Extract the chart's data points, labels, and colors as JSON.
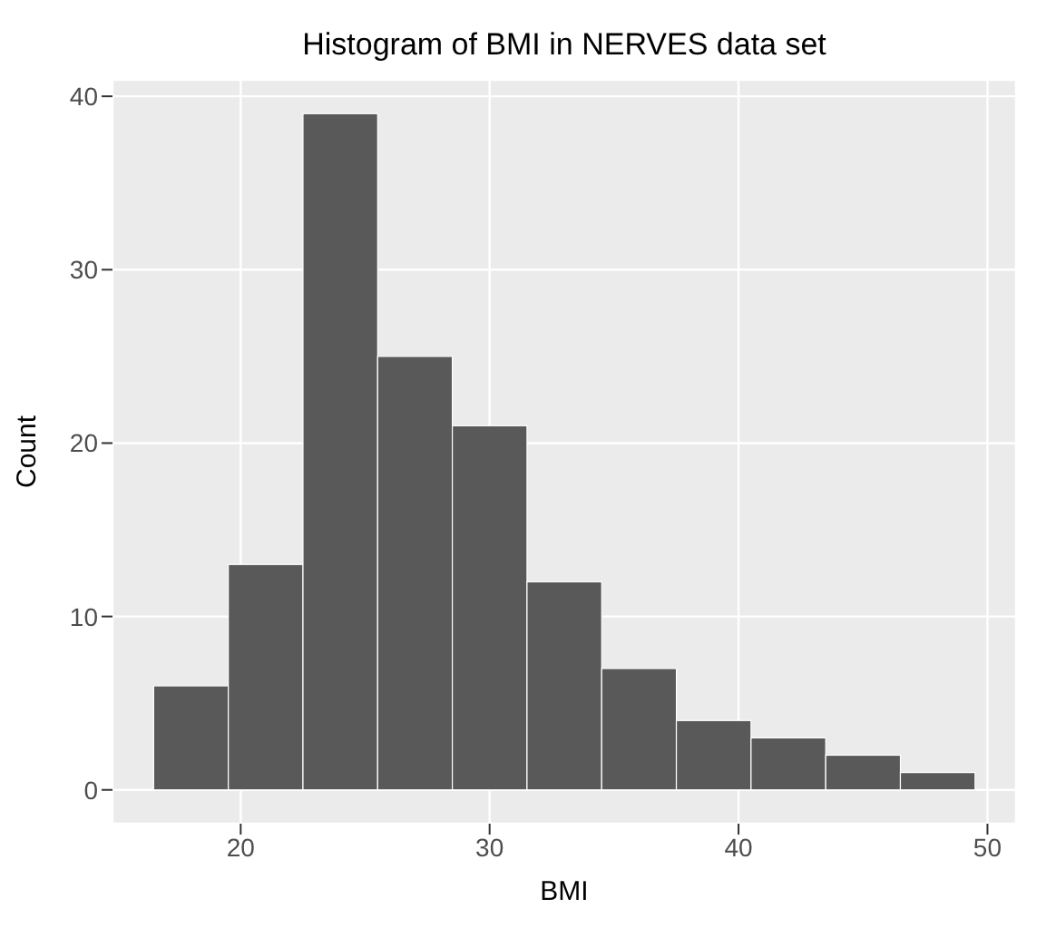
{
  "chart_data": {
    "type": "histogram",
    "title": "Histogram of BMI in NERVES data set",
    "xlabel": "BMI",
    "ylabel": "Count",
    "bins": [
      16.5,
      19.5,
      22.5,
      25.5,
      28.5,
      31.5,
      34.5,
      37.5,
      40.5,
      43.5,
      46.5,
      49.5
    ],
    "values": [
      6,
      13,
      39,
      25,
      21,
      12,
      7,
      4,
      3,
      2,
      1
    ],
    "color": "#595959",
    "xlim": [
      14.85,
      51.15
    ],
    "xticks": [
      20,
      30,
      40,
      50
    ],
    "ylim": [
      -1.95,
      40.95
    ],
    "yticks": [
      0,
      10,
      20,
      30,
      40
    ],
    "grid": true
  }
}
